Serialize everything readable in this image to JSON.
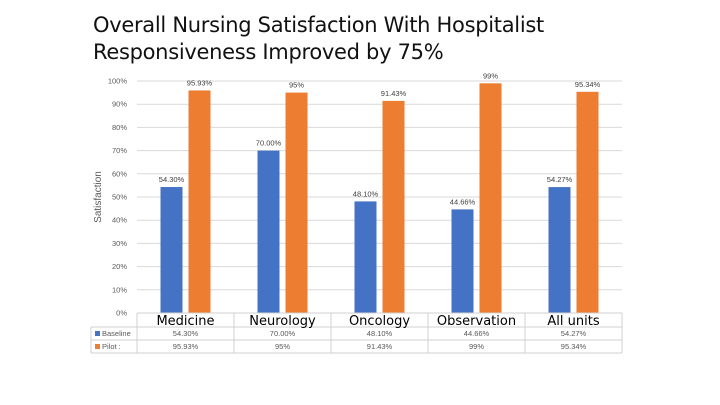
{
  "title_lines": [
    "Overall Nursing Satisfaction With Hospitalist",
    "Responsiveness Improved by 75%"
  ],
  "chart_data": {
    "type": "bar",
    "title": "Overall Nursing Satisfaction With Hospitalist Responsiveness Improved by 75%",
    "xlabel": "",
    "ylabel": "Satisfaction",
    "ylim": [
      0,
      100
    ],
    "yticks": [
      "0%",
      "10%",
      "20%",
      "30%",
      "40%",
      "50%",
      "60%",
      "70%",
      "80%",
      "90%",
      "100%"
    ],
    "grid": true,
    "legend": "data-table",
    "categories": [
      "Medicine",
      "Neurology",
      "Oncology",
      "Observation",
      "All units"
    ],
    "series": [
      {
        "name": "Baseline",
        "color": "#4472C4",
        "values": [
          54.3,
          70.0,
          48.1,
          44.66,
          54.27
        ],
        "labels": [
          "54.30%",
          "70.00%",
          "48.10%",
          "44.66%",
          "54.27%"
        ]
      },
      {
        "name": "Pilot :",
        "color": "#ED7D31",
        "values": [
          95.93,
          95,
          91.43,
          99,
          95.34
        ],
        "labels": [
          "95.93%",
          "95%",
          "91.43%",
          "99%",
          "95.34%"
        ]
      }
    ]
  }
}
